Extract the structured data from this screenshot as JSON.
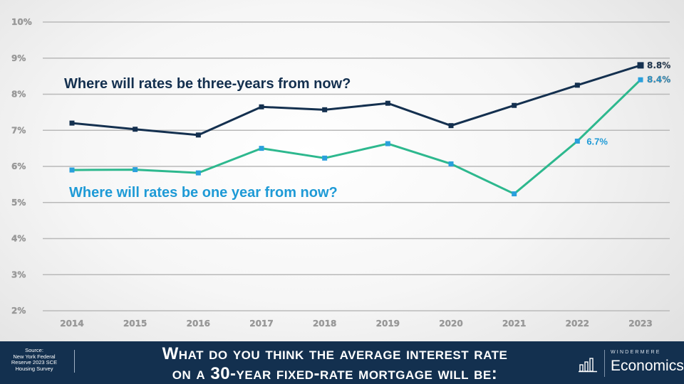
{
  "chart_data": {
    "type": "line",
    "categories": [
      "2014",
      "2015",
      "2016",
      "2017",
      "2018",
      "2019",
      "2020",
      "2021",
      "2022",
      "2023"
    ],
    "ylim": [
      2,
      10
    ],
    "y_ticks": [
      2,
      3,
      4,
      5,
      6,
      7,
      8,
      9,
      10
    ],
    "y_tick_labels": [
      "2%",
      "3%",
      "4%",
      "5%",
      "6%",
      "7%",
      "8%",
      "9%",
      "10%"
    ],
    "grid": true,
    "series": [
      {
        "name": "Where will rates be three-years from now?",
        "color": "#14304f",
        "marker": "square",
        "values": [
          7.2,
          7.03,
          6.87,
          7.65,
          7.57,
          7.75,
          7.13,
          7.69,
          8.25,
          8.8
        ],
        "end_label": "8.8%"
      },
      {
        "name": "Where will rates be one year from now?",
        "color": "#2db88e",
        "marker_color": "#2aa0dc",
        "marker": "square",
        "values": [
          5.9,
          5.91,
          5.82,
          6.5,
          6.23,
          6.63,
          6.07,
          5.24,
          6.7,
          8.4
        ],
        "end_label": "8.4%",
        "point_label": {
          "index": 8,
          "text": "6.7%"
        }
      }
    ],
    "label_colors": {
      "three_year": "#14304f",
      "one_year": "#1e9ad6"
    }
  },
  "footer": {
    "source_lines": [
      "Source:",
      "New York Federal",
      "Reserve 2023 SCE",
      "Housing Survey"
    ],
    "question_line1": "What do you think the average interest rate",
    "question_line2": "on a 30-year fixed-rate mortgage will be:",
    "brand_name": "WINDERMERE",
    "brand_sub": "Economics",
    "brand_icon": "bar-chart-icon"
  }
}
